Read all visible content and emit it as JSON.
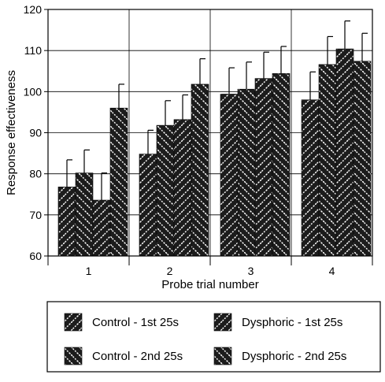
{
  "chart_data": {
    "type": "bar",
    "title": "",
    "xlabel": "Probe trial number",
    "ylabel": "Response effectiveness",
    "ylim": [
      60,
      120
    ],
    "yticks": [
      60,
      70,
      80,
      90,
      100,
      110,
      120
    ],
    "categories": [
      "1",
      "2",
      "3",
      "4"
    ],
    "grid": true,
    "legend_position": "bottom",
    "series": [
      {
        "name": "Control - 1st 25s",
        "pattern": "hatch-up",
        "values": [
          76.8,
          84.8,
          99.4,
          98.0
        ],
        "errors": [
          6.6,
          5.8,
          6.4,
          6.8
        ]
      },
      {
        "name": "Control - 2nd 25s",
        "pattern": "hatch-down",
        "values": [
          80.2,
          91.8,
          100.6,
          106.6
        ],
        "errors": [
          5.6,
          6.0,
          6.6,
          6.8
        ]
      },
      {
        "name": "Dysphoric - 1st 25s",
        "pattern": "hatch-up",
        "values": [
          73.6,
          93.2,
          103.2,
          110.4
        ],
        "errors": [
          6.6,
          6.0,
          6.4,
          6.8
        ]
      },
      {
        "name": "Dysphoric - 2nd 25s",
        "pattern": "hatch-down",
        "values": [
          96.0,
          101.8,
          104.4,
          107.4
        ],
        "errors": [
          5.8,
          6.2,
          6.6,
          6.8
        ]
      }
    ]
  },
  "colors": {
    "bar": "#1c1c1c",
    "hatch": "#ffffff",
    "axis": "#000000",
    "grid": "#000000"
  }
}
